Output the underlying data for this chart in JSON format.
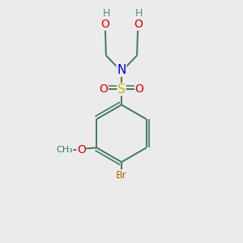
{
  "bg_color": "#ebebeb",
  "bond_color": "#3d7a5a",
  "bond_width": 1.4,
  "atom_colors": {
    "C": "#3d7a5a",
    "N": "#0000dd",
    "O": "#dd0000",
    "S": "#bbbb00",
    "Br": "#bb6600",
    "H": "#5a8888"
  },
  "font_size": 9,
  "figsize": [
    3.0,
    3.0
  ],
  "dpi": 100
}
